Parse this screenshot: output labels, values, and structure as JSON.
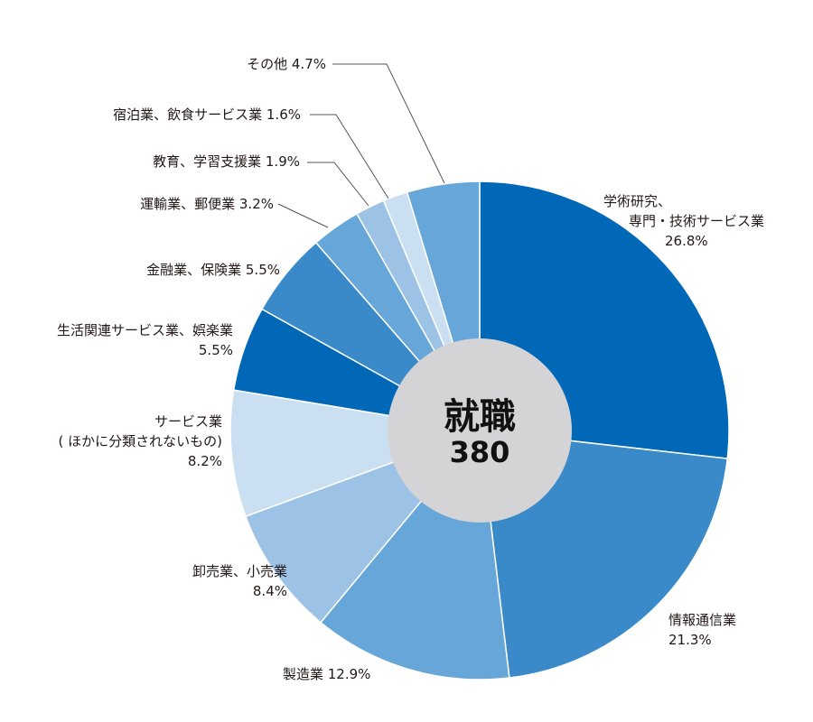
{
  "chart_data": {
    "type": "pie",
    "style": "donut",
    "center": {
      "title": "就職",
      "value": "380"
    },
    "slices": [
      {
        "name": [
          "学術研究、",
          "専門・技術サービス業"
        ],
        "value": 26.8,
        "value_label": "26.8%",
        "color": "#0068b7"
      },
      {
        "name": [
          "情報通信業"
        ],
        "value": 21.3,
        "value_label": "21.3%",
        "color": "#3a8ac9"
      },
      {
        "name": [
          "製造業"
        ],
        "value": 12.9,
        "value_label": "12.9%",
        "color": "#66a6d8"
      },
      {
        "name": [
          "卸売業、小売業"
        ],
        "value": 8.4,
        "value_label": "8.4%",
        "color": "#9cc3e5"
      },
      {
        "name": [
          "サービス業",
          "( ほかに分類されないもの)"
        ],
        "value": 8.2,
        "value_label": "8.2%",
        "color": "#cae0f2"
      },
      {
        "name": [
          "生活関連サービス業、娯楽業"
        ],
        "value": 5.5,
        "value_label": "5.5%",
        "color": "#0068b7"
      },
      {
        "name": [
          "金融業、保険業"
        ],
        "value": 5.5,
        "value_label": "5.5%",
        "color": "#3a8ac9"
      },
      {
        "name": [
          "運輸業、郵便業"
        ],
        "value": 3.2,
        "value_label": "3.2%",
        "color": "#66a6d8"
      },
      {
        "name": [
          "教育、学習支援業"
        ],
        "value": 1.9,
        "value_label": "1.9%",
        "color": "#9cc3e5"
      },
      {
        "name": [
          "宿泊業、飲食サービス業"
        ],
        "value": 1.6,
        "value_label": "1.6%",
        "color": "#cae0f2"
      },
      {
        "name": [
          "その他"
        ],
        "value": 4.7,
        "value_label": "4.7%",
        "color": "#66a6d8"
      }
    ],
    "center_color": "#d4d4d6",
    "legend": "none"
  }
}
